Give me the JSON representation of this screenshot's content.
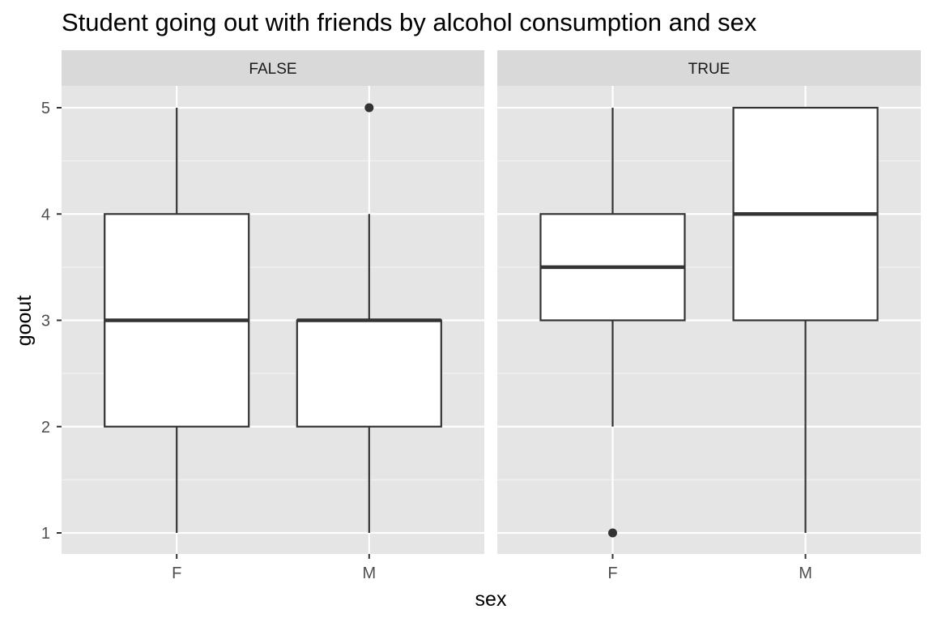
{
  "chart_data": {
    "type": "boxplot",
    "title": "Student going out with friends by alcohol consumption and sex",
    "xlabel": "sex",
    "ylabel": "goout",
    "facet_variable": "alcohol consumption",
    "ylim": [
      0.8,
      5.2
    ],
    "yticks": [
      "1",
      "2",
      "3",
      "4",
      "5"
    ],
    "categories": [
      "F",
      "M"
    ],
    "panels": [
      {
        "label": "FALSE",
        "boxes": [
          {
            "category": "F",
            "whisker_low": 1,
            "q1": 2,
            "median": 3,
            "q3": 4,
            "whisker_high": 5,
            "outliers": []
          },
          {
            "category": "M",
            "whisker_low": 1,
            "q1": 2,
            "median": 3,
            "q3": 3,
            "whisker_high": 4,
            "outliers": [
              5
            ]
          }
        ]
      },
      {
        "label": "TRUE",
        "boxes": [
          {
            "category": "F",
            "whisker_low": 2,
            "q1": 3,
            "median": 3.5,
            "q3": 4,
            "whisker_high": 5,
            "outliers": [
              1
            ]
          },
          {
            "category": "M",
            "whisker_low": 1,
            "q1": 3,
            "median": 4,
            "q3": 5,
            "whisker_high": 5,
            "outliers": []
          }
        ]
      }
    ],
    "colors": {
      "panel_background": "#e5e5e5",
      "grid_major": "#ffffff",
      "grid_minor": "#f2f2f2",
      "strip_background": "#d9d9d9",
      "box_fill": "#ffffff",
      "box_stroke": "#333333",
      "tick_label": "#4d4d4d",
      "strip_text": "#1a1a1a"
    }
  }
}
